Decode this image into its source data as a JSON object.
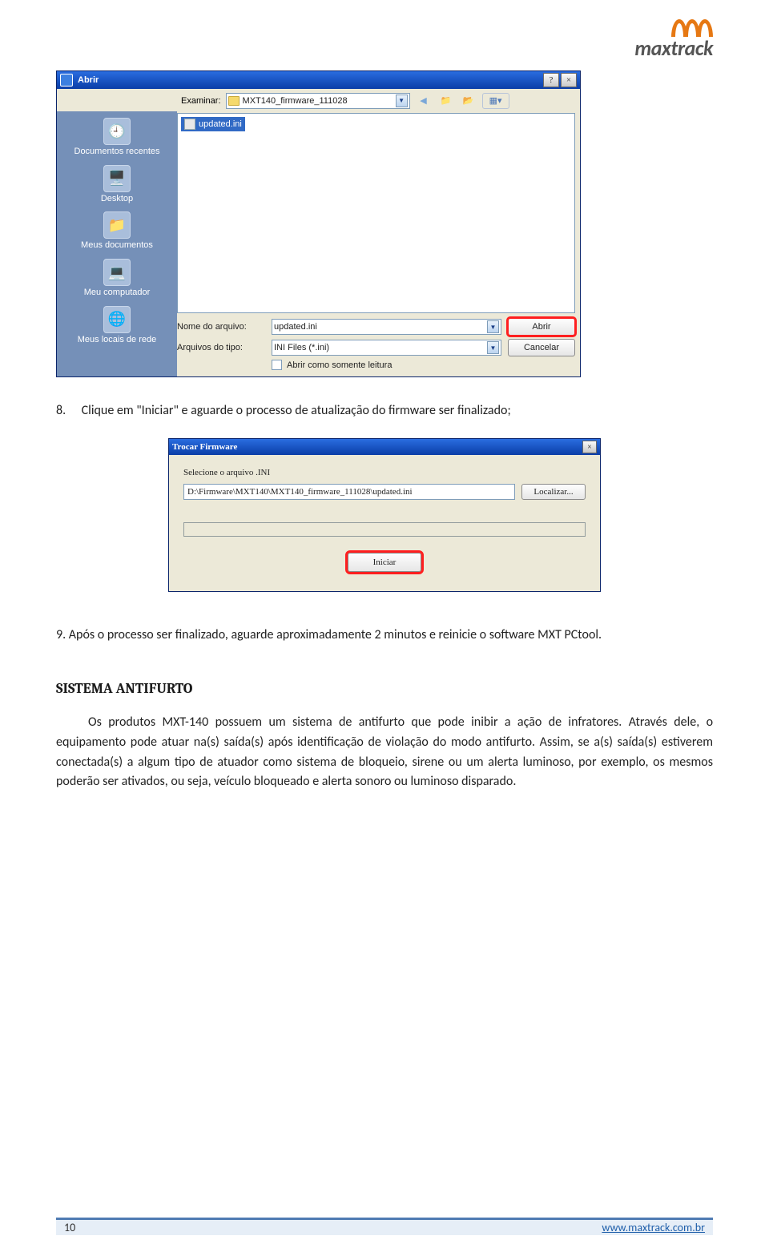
{
  "logo": {
    "brand": "maxtrack"
  },
  "open_dialog": {
    "title": "Abrir",
    "help_btn": "?",
    "close_btn": "×",
    "examine_label": "Examinar:",
    "folder": "MXT140_firmware_111028",
    "places": {
      "recent": "Documentos recentes",
      "desktop": "Desktop",
      "mydocs": "Meus documentos",
      "mycomp": "Meu computador",
      "mynet": "Meus locais de rede"
    },
    "file_selected": "updated.ini",
    "filename_label": "Nome do arquivo:",
    "filename_value": "updated.ini",
    "filetype_label": "Arquivos do tipo:",
    "filetype_value": "INI Files (*.ini)",
    "readonly_label": "Abrir como somente leitura",
    "open_btn": "Abrir",
    "cancel_btn": "Cancelar"
  },
  "step8": "Clique em \"Iniciar\" e aguarde o processo de atualização do firmware ser finalizado;",
  "step8_num": "8.",
  "fw_dialog": {
    "title": "Trocar Firmware",
    "select_label": "Selecione o arquivo .INI",
    "path": "D:\\Firmware\\MXT140\\MXT140_firmware_111028\\updated.ini",
    "browse_btn": "Localizar...",
    "start_btn": "Iniciar"
  },
  "step9_num": "9.",
  "step9": "Após o processo ser finalizado, aguarde aproximadamente 2 minutos e reinicie o software MXT PCtool.",
  "section_title": "SISTEMA ANTIFURTO",
  "antifurto_para": "Os produtos MXT-140 possuem um sistema de antifurto que pode inibir a ação de infratores. Através dele, o equipamento pode atuar na(s) saída(s) após identificação de violação do modo antifurto. Assim, se a(s) saída(s) estiverem conectada(s) a algum tipo de atuador como sistema de bloqueio, sirene ou um alerta luminoso, por exemplo, os mesmos poderão ser ativados, ou seja, veículo bloqueado e alerta sonoro ou luminoso disparado.",
  "footer": {
    "page": "10",
    "site": "www.maxtrack.com.br"
  }
}
